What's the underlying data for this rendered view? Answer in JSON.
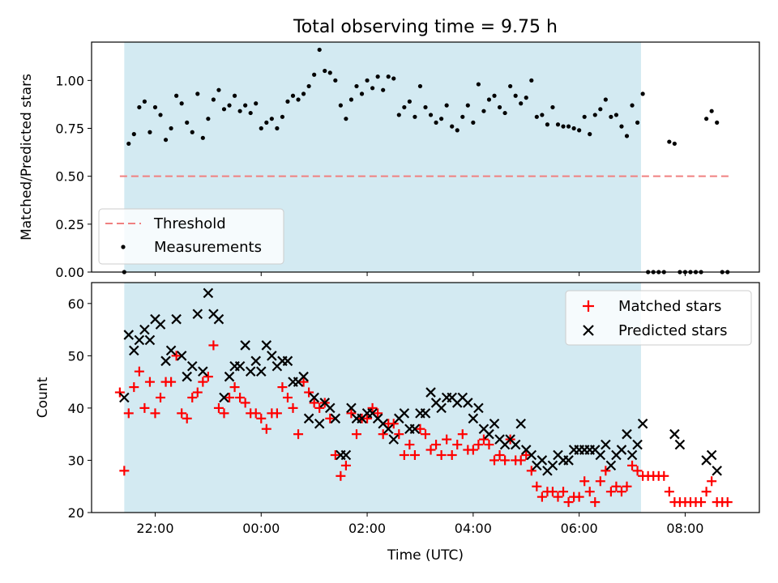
{
  "figure": {
    "title": "Total observing time = 9.75 h",
    "xlabel": "Time (UTC)",
    "x_tick_labels": [
      "22:00",
      "00:00",
      "02:00",
      "04:00",
      "06:00",
      "08:00"
    ],
    "shaded_interval": [
      "21:25",
      "07:10"
    ],
    "shade_color": "#d3eaf2"
  },
  "chart_data": [
    {
      "type": "scatter",
      "ylabel": "Matched/Predicted stars",
      "ylim": [
        0,
        1.2
      ],
      "y_ticks": [
        "0.00",
        "0.25",
        "0.50",
        "0.75",
        "1.00"
      ],
      "legend_placement": "lower-left",
      "threshold": {
        "name": "Threshold",
        "value": 0.5,
        "x_range": [
          "21:20",
          "08:50"
        ],
        "color": "#f08080",
        "style": "dashed"
      },
      "series": [
        {
          "name": "Measurements",
          "color": "#000000",
          "x": [
            "21:25",
            "21:30",
            "21:36",
            "21:42",
            "21:48",
            "21:54",
            "22:00",
            "22:06",
            "22:12",
            "22:18",
            "22:24",
            "22:30",
            "22:36",
            "22:42",
            "22:48",
            "22:54",
            "23:00",
            "23:06",
            "23:12",
            "23:18",
            "23:24",
            "23:30",
            "23:36",
            "23:42",
            "23:48",
            "23:54",
            "00:00",
            "00:06",
            "00:12",
            "00:18",
            "00:24",
            "00:30",
            "00:36",
            "00:42",
            "00:48",
            "00:54",
            "01:00",
            "01:06",
            "01:12",
            "01:18",
            "01:24",
            "01:30",
            "01:36",
            "01:42",
            "01:48",
            "01:54",
            "02:00",
            "02:06",
            "02:12",
            "02:18",
            "02:24",
            "02:30",
            "02:36",
            "02:42",
            "02:48",
            "02:54",
            "03:00",
            "03:06",
            "03:12",
            "03:18",
            "03:24",
            "03:30",
            "03:36",
            "03:42",
            "03:48",
            "03:54",
            "04:00",
            "04:06",
            "04:12",
            "04:18",
            "04:24",
            "04:30",
            "04:36",
            "04:42",
            "04:48",
            "04:54",
            "05:00",
            "05:06",
            "05:12",
            "05:18",
            "05:24",
            "05:30",
            "05:36",
            "05:42",
            "05:48",
            "05:54",
            "06:00",
            "06:06",
            "06:12",
            "06:18",
            "06:24",
            "06:30",
            "06:36",
            "06:42",
            "06:48",
            "06:54",
            "07:00",
            "07:06",
            "07:12",
            "07:18",
            "07:24",
            "07:30",
            "07:36",
            "07:42",
            "07:48",
            "07:54",
            "08:00",
            "08:06",
            "08:12",
            "08:18",
            "08:24",
            "08:30",
            "08:36",
            "08:42",
            "08:48"
          ],
          "values": [
            0.0,
            0.67,
            0.72,
            0.86,
            0.89,
            0.73,
            0.86,
            0.82,
            0.69,
            0.75,
            0.92,
            0.88,
            0.78,
            0.73,
            0.93,
            0.7,
            0.8,
            0.9,
            0.95,
            0.85,
            0.87,
            0.92,
            0.84,
            0.87,
            0.83,
            0.88,
            0.75,
            0.78,
            0.8,
            0.75,
            0.81,
            0.89,
            0.92,
            0.9,
            0.93,
            0.97,
            1.03,
            1.16,
            1.05,
            1.04,
            1.0,
            0.87,
            0.8,
            0.9,
            0.97,
            0.93,
            1.0,
            0.96,
            1.02,
            0.95,
            1.02,
            1.01,
            0.82,
            0.86,
            0.89,
            0.81,
            0.97,
            0.86,
            0.82,
            0.78,
            0.8,
            0.87,
            0.76,
            0.74,
            0.81,
            0.87,
            0.78,
            0.98,
            0.84,
            0.9,
            0.92,
            0.86,
            0.83,
            0.97,
            0.92,
            0.88,
            0.91,
            1.0,
            0.81,
            0.82,
            0.77,
            0.86,
            0.77,
            0.76,
            0.76,
            0.75,
            0.74,
            0.81,
            0.72,
            0.82,
            0.85,
            0.9,
            0.81,
            0.82,
            0.76,
            0.71,
            0.87,
            0.78,
            0.93,
            0.0,
            0.0,
            0.0,
            0.0,
            0.68,
            0.67,
            0.0,
            0.0,
            0.0,
            0.0,
            0.0,
            0.8,
            0.84,
            0.78,
            0.0,
            0.0
          ]
        }
      ]
    },
    {
      "type": "scatter",
      "ylabel": "Count",
      "ylim": [
        20,
        64
      ],
      "y_ticks": [
        "20",
        "30",
        "40",
        "50",
        "60"
      ],
      "legend_placement": "upper-right",
      "series": [
        {
          "name": "Matched stars",
          "marker": "plus",
          "color": "#ff0000",
          "x": [
            "21:20",
            "21:25",
            "21:30",
            "21:36",
            "21:42",
            "21:48",
            "21:54",
            "22:00",
            "22:06",
            "22:12",
            "22:18",
            "22:24",
            "22:30",
            "22:36",
            "22:42",
            "22:48",
            "22:54",
            "23:00",
            "23:06",
            "23:12",
            "23:18",
            "23:24",
            "23:30",
            "23:36",
            "23:42",
            "23:48",
            "23:54",
            "00:00",
            "00:06",
            "00:12",
            "00:18",
            "00:24",
            "00:30",
            "00:36",
            "00:42",
            "00:48",
            "00:54",
            "01:00",
            "01:06",
            "01:12",
            "01:18",
            "01:24",
            "01:30",
            "01:36",
            "01:42",
            "01:48",
            "01:54",
            "02:00",
            "02:06",
            "02:12",
            "02:18",
            "02:24",
            "02:30",
            "02:36",
            "02:42",
            "02:48",
            "02:54",
            "03:00",
            "03:06",
            "03:12",
            "03:18",
            "03:24",
            "03:30",
            "03:36",
            "03:42",
            "03:48",
            "03:54",
            "04:00",
            "04:06",
            "04:12",
            "04:18",
            "04:24",
            "04:30",
            "04:36",
            "04:42",
            "04:48",
            "04:54",
            "05:00",
            "05:06",
            "05:12",
            "05:18",
            "05:24",
            "05:30",
            "05:36",
            "05:42",
            "05:48",
            "05:54",
            "06:00",
            "06:06",
            "06:12",
            "06:18",
            "06:24",
            "06:30",
            "06:36",
            "06:42",
            "06:48",
            "06:54",
            "07:00",
            "07:06",
            "07:12",
            "07:18",
            "07:24",
            "07:30",
            "07:36",
            "07:42",
            "07:48",
            "07:54",
            "08:00",
            "08:06",
            "08:12",
            "08:18",
            "08:24",
            "08:30",
            "08:36",
            "08:42",
            "08:48"
          ],
          "values": [
            43,
            28,
            39,
            44,
            47,
            40,
            45,
            39,
            42,
            45,
            45,
            50,
            39,
            38,
            42,
            43,
            45,
            46,
            52,
            40,
            39,
            42,
            44,
            42,
            41,
            39,
            39,
            38,
            36,
            39,
            39,
            44,
            42,
            40,
            35,
            45,
            43,
            41,
            40,
            41,
            38,
            31,
            27,
            29,
            39,
            35,
            38,
            38,
            40,
            39,
            35,
            37,
            37,
            35,
            31,
            33,
            31,
            36,
            35,
            32,
            33,
            31,
            34,
            31,
            33,
            35,
            32,
            32,
            33,
            34,
            33,
            30,
            31,
            30,
            34,
            30,
            30,
            31,
            28,
            25,
            23,
            24,
            24,
            23,
            24,
            22,
            23,
            23,
            26,
            24,
            22,
            26,
            28,
            24,
            25,
            24,
            25,
            29,
            28,
            27,
            27,
            27,
            27,
            27,
            24,
            22,
            22,
            22,
            22,
            22,
            22,
            24,
            26,
            22,
            22,
            22
          ]
        },
        {
          "name": "Predicted stars",
          "marker": "x",
          "color": "#000000",
          "x": [
            "21:25",
            "21:30",
            "21:36",
            "21:42",
            "21:48",
            "21:54",
            "22:00",
            "22:06",
            "22:12",
            "22:18",
            "22:24",
            "22:30",
            "22:36",
            "22:42",
            "22:48",
            "22:54",
            "23:00",
            "23:06",
            "23:12",
            "23:18",
            "23:24",
            "23:30",
            "23:36",
            "23:42",
            "23:48",
            "23:54",
            "00:00",
            "00:06",
            "00:12",
            "00:18",
            "00:24",
            "00:30",
            "00:36",
            "00:42",
            "00:48",
            "00:54",
            "01:00",
            "01:06",
            "01:12",
            "01:18",
            "01:24",
            "01:30",
            "01:36",
            "01:42",
            "01:48",
            "01:54",
            "02:00",
            "02:06",
            "02:12",
            "02:18",
            "02:24",
            "02:30",
            "02:36",
            "02:42",
            "02:48",
            "02:54",
            "03:00",
            "03:06",
            "03:12",
            "03:18",
            "03:24",
            "03:30",
            "03:36",
            "03:42",
            "03:48",
            "03:54",
            "04:00",
            "04:06",
            "04:12",
            "04:18",
            "04:24",
            "04:30",
            "04:36",
            "04:42",
            "04:48",
            "04:54",
            "05:00",
            "05:06",
            "05:12",
            "05:18",
            "05:24",
            "05:30",
            "05:36",
            "05:42",
            "05:48",
            "05:54",
            "06:00",
            "06:06",
            "06:12",
            "06:18",
            "06:24",
            "06:30",
            "06:36",
            "06:42",
            "06:48",
            "06:54",
            "07:00",
            "07:06",
            "07:12",
            "07:48",
            "07:54",
            "08:24",
            "08:30",
            "08:36"
          ],
          "values": [
            42,
            54,
            51,
            53,
            55,
            53,
            57,
            56,
            49,
            51,
            57,
            50,
            46,
            48,
            58,
            47,
            62,
            58,
            57,
            42,
            46,
            48,
            48,
            52,
            47,
            49,
            47,
            52,
            50,
            48,
            49,
            49,
            45,
            45,
            46,
            38,
            42,
            37,
            41,
            40,
            38,
            31,
            31,
            40,
            38,
            38,
            39,
            39,
            38,
            37,
            36,
            34,
            38,
            39,
            36,
            36,
            39,
            39,
            43,
            41,
            40,
            42,
            42,
            41,
            42,
            41,
            38,
            40,
            36,
            35,
            37,
            34,
            33,
            34,
            33,
            37,
            32,
            31,
            29,
            30,
            28,
            29,
            31,
            30,
            30,
            32,
            32,
            32,
            32,
            32,
            31,
            33,
            29,
            31,
            32,
            35,
            31,
            33,
            37,
            35,
            33,
            30,
            31,
            28
          ]
        }
      ]
    }
  ]
}
